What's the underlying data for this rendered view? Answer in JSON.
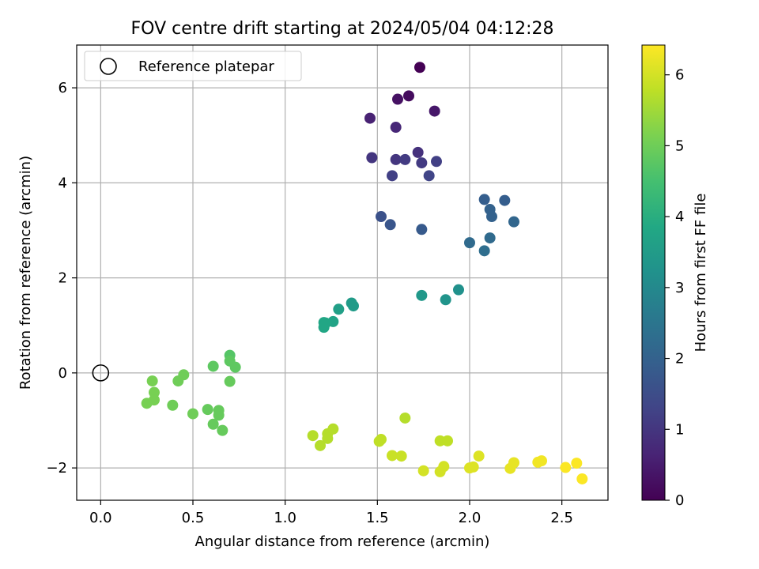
{
  "chart_data": {
    "type": "scatter",
    "title": "FOV centre drift starting at 2024/05/04 04:12:28",
    "xlabel": "Angular distance from reference (arcmin)",
    "ylabel": "Rotation from reference (arcmin)",
    "xlim": [
      -0.13,
      2.75
    ],
    "ylim": [
      -2.68,
      6.9
    ],
    "xticks": [
      0.0,
      0.5,
      1.0,
      1.5,
      2.0,
      2.5
    ],
    "xtick_labels": [
      "0.0",
      "0.5",
      "1.0",
      "1.5",
      "2.0",
      "2.5"
    ],
    "yticks": [
      -2,
      0,
      2,
      4,
      6
    ],
    "ytick_labels": [
      "−2",
      "0",
      "2",
      "4",
      "6"
    ],
    "grid": true,
    "legend": {
      "placement": "top-left",
      "entries": [
        "Reference platepar"
      ]
    },
    "reference_point": {
      "x": 0.0,
      "y": 0.0,
      "marker": "open-circle"
    },
    "colorbar": {
      "label": "Hours from first FF file",
      "colormap": "viridis",
      "range": [
        0,
        6.42
      ],
      "ticks": [
        0,
        1,
        2,
        3,
        4,
        5,
        6
      ],
      "tick_labels": [
        "0",
        "1",
        "2",
        "3",
        "4",
        "5",
        "6"
      ]
    },
    "points": [
      {
        "x": 1.73,
        "y": 6.43,
        "hours": 0.0
      },
      {
        "x": 1.67,
        "y": 5.83,
        "hours": 0.2
      },
      {
        "x": 1.61,
        "y": 5.76,
        "hours": 0.3
      },
      {
        "x": 1.81,
        "y": 5.51,
        "hours": 0.4
      },
      {
        "x": 1.46,
        "y": 5.36,
        "hours": 0.6
      },
      {
        "x": 1.6,
        "y": 5.17,
        "hours": 0.7
      },
      {
        "x": 1.72,
        "y": 4.64,
        "hours": 0.9
      },
      {
        "x": 1.47,
        "y": 4.53,
        "hours": 1.0
      },
      {
        "x": 1.6,
        "y": 4.49,
        "hours": 1.0
      },
      {
        "x": 1.65,
        "y": 4.49,
        "hours": 1.1
      },
      {
        "x": 1.74,
        "y": 4.42,
        "hours": 1.1
      },
      {
        "x": 1.82,
        "y": 4.45,
        "hours": 1.2
      },
      {
        "x": 1.58,
        "y": 4.15,
        "hours": 1.2
      },
      {
        "x": 1.78,
        "y": 4.15,
        "hours": 1.3
      },
      {
        "x": 1.52,
        "y": 3.29,
        "hours": 1.6
      },
      {
        "x": 1.57,
        "y": 3.12,
        "hours": 1.7
      },
      {
        "x": 1.74,
        "y": 3.02,
        "hours": 1.8
      },
      {
        "x": 2.08,
        "y": 3.65,
        "hours": 1.9
      },
      {
        "x": 2.19,
        "y": 3.63,
        "hours": 1.9
      },
      {
        "x": 2.11,
        "y": 3.44,
        "hours": 2.0
      },
      {
        "x": 2.12,
        "y": 3.29,
        "hours": 2.0
      },
      {
        "x": 2.24,
        "y": 3.18,
        "hours": 2.1
      },
      {
        "x": 2.11,
        "y": 2.84,
        "hours": 2.2
      },
      {
        "x": 2.0,
        "y": 2.74,
        "hours": 2.2
      },
      {
        "x": 2.08,
        "y": 2.57,
        "hours": 2.3
      },
      {
        "x": 1.94,
        "y": 1.75,
        "hours": 3.2
      },
      {
        "x": 1.87,
        "y": 1.54,
        "hours": 3.3
      },
      {
        "x": 1.74,
        "y": 1.63,
        "hours": 3.4
      },
      {
        "x": 1.36,
        "y": 1.47,
        "hours": 3.5
      },
      {
        "x": 1.37,
        "y": 1.41,
        "hours": 3.5
      },
      {
        "x": 1.29,
        "y": 1.34,
        "hours": 3.6
      },
      {
        "x": 1.26,
        "y": 1.08,
        "hours": 3.7
      },
      {
        "x": 1.21,
        "y": 1.06,
        "hours": 3.8
      },
      {
        "x": 1.22,
        "y": 1.05,
        "hours": 3.8
      },
      {
        "x": 1.21,
        "y": 0.96,
        "hours": 3.8
      },
      {
        "x": 0.7,
        "y": 0.37,
        "hours": 4.7
      },
      {
        "x": 0.7,
        "y": 0.25,
        "hours": 4.8
      },
      {
        "x": 0.73,
        "y": 0.12,
        "hours": 4.8
      },
      {
        "x": 0.61,
        "y": 0.14,
        "hours": 4.8
      },
      {
        "x": 0.7,
        "y": -0.18,
        "hours": 4.9
      },
      {
        "x": 0.45,
        "y": -0.04,
        "hours": 5.0
      },
      {
        "x": 0.42,
        "y": -0.17,
        "hours": 5.0
      },
      {
        "x": 0.28,
        "y": -0.17,
        "hours": 5.1
      },
      {
        "x": 0.29,
        "y": -0.41,
        "hours": 5.1
      },
      {
        "x": 0.29,
        "y": -0.57,
        "hours": 5.1
      },
      {
        "x": 0.25,
        "y": -0.64,
        "hours": 5.1
      },
      {
        "x": 0.39,
        "y": -0.68,
        "hours": 5.0
      },
      {
        "x": 0.5,
        "y": -0.86,
        "hours": 5.0
      },
      {
        "x": 0.58,
        "y": -0.77,
        "hours": 4.9
      },
      {
        "x": 0.64,
        "y": -0.79,
        "hours": 4.9
      },
      {
        "x": 0.64,
        "y": -0.89,
        "hours": 4.9
      },
      {
        "x": 0.61,
        "y": -1.08,
        "hours": 4.9
      },
      {
        "x": 0.66,
        "y": -1.21,
        "hours": 4.9
      },
      {
        "x": 1.15,
        "y": -1.32,
        "hours": 5.7
      },
      {
        "x": 1.19,
        "y": -1.53,
        "hours": 5.7
      },
      {
        "x": 1.23,
        "y": -1.28,
        "hours": 5.7
      },
      {
        "x": 1.23,
        "y": -1.38,
        "hours": 5.7
      },
      {
        "x": 1.26,
        "y": -1.18,
        "hours": 5.7
      },
      {
        "x": 1.51,
        "y": -1.44,
        "hours": 5.8
      },
      {
        "x": 1.52,
        "y": -1.4,
        "hours": 5.8
      },
      {
        "x": 1.65,
        "y": -0.95,
        "hours": 5.7
      },
      {
        "x": 1.58,
        "y": -1.74,
        "hours": 5.9
      },
      {
        "x": 1.63,
        "y": -1.75,
        "hours": 5.9
      },
      {
        "x": 1.75,
        "y": -2.06,
        "hours": 6.0
      },
      {
        "x": 1.84,
        "y": -1.43,
        "hours": 5.8
      },
      {
        "x": 1.88,
        "y": -1.43,
        "hours": 5.8
      },
      {
        "x": 1.84,
        "y": -2.08,
        "hours": 6.0
      },
      {
        "x": 1.86,
        "y": -1.97,
        "hours": 6.0
      },
      {
        "x": 2.0,
        "y": -2.0,
        "hours": 6.1
      },
      {
        "x": 2.02,
        "y": -1.98,
        "hours": 6.1
      },
      {
        "x": 2.05,
        "y": -1.75,
        "hours": 6.1
      },
      {
        "x": 2.22,
        "y": -2.01,
        "hours": 6.2
      },
      {
        "x": 2.24,
        "y": -1.89,
        "hours": 6.2
      },
      {
        "x": 2.37,
        "y": -1.88,
        "hours": 6.3
      },
      {
        "x": 2.39,
        "y": -1.85,
        "hours": 6.3
      },
      {
        "x": 2.52,
        "y": -1.99,
        "hours": 6.4
      },
      {
        "x": 2.58,
        "y": -1.9,
        "hours": 6.4
      },
      {
        "x": 2.61,
        "y": -2.23,
        "hours": 6.4
      }
    ]
  }
}
